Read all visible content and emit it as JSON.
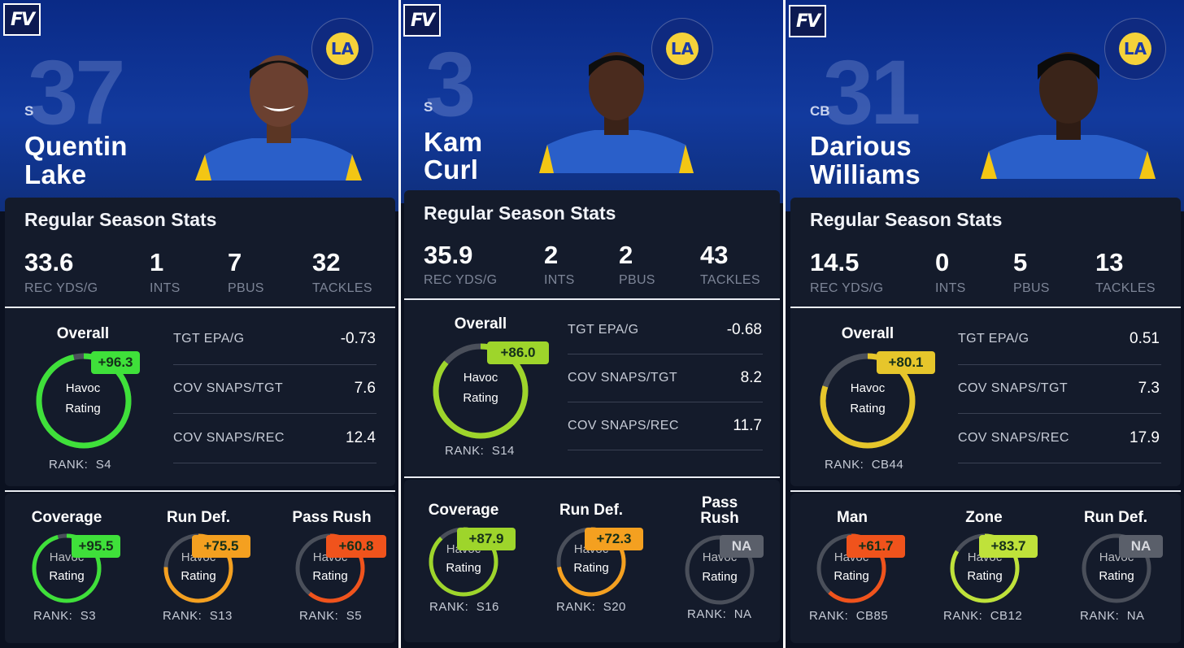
{
  "brand": {
    "logo_text": "FV"
  },
  "colors": {
    "green": "#3fe03a",
    "yellow_green": "#9ed52b",
    "lime": "#bfe23a",
    "yellow": "#e6c62b",
    "orange": "#f4a020",
    "red_orange": "#f0531c",
    "na_gray": "#5a5f6a",
    "hero_blue": "#0f2f7d"
  },
  "labels": {
    "section_title": "Regular Season Stats",
    "overall": "Overall",
    "havoc": "Havoc",
    "rating": "Rating",
    "rank_prefix": "RANK:",
    "rec_yds": "REC YDS/G",
    "ints": "INTS",
    "pbus": "PBUS",
    "tackles": "TACKLES",
    "tgt_epa": "TGT EPA/G",
    "cov_snaps_tgt": "COV SNAPS/TGT",
    "cov_snaps_rec": "COV SNAPS/REC"
  },
  "players": [
    {
      "number": "37",
      "position": "S",
      "first_name": "Quentin",
      "last_name": "Lake",
      "stats": {
        "rec_yds": "33.6",
        "ints": "1",
        "pbus": "7",
        "tackles": "32"
      },
      "overall": {
        "score": "+96.3",
        "value": 96.3,
        "rank": "S4",
        "color": "#3fe03a"
      },
      "metrics": {
        "tgt_epa": "-0.73",
        "cov_snaps_tgt": "7.6",
        "cov_snaps_rec": "12.4"
      },
      "subs": [
        {
          "title": "Coverage",
          "score": "+95.5",
          "value": 95.5,
          "rank": "S3",
          "color": "#3fe03a"
        },
        {
          "title": "Run Def.",
          "score": "+75.5",
          "value": 75.5,
          "rank": "S13",
          "color": "#f4a020"
        },
        {
          "title": "Pass Rush",
          "score": "+60.8",
          "value": 60.8,
          "rank": "S5",
          "color": "#f0531c"
        }
      ]
    },
    {
      "number": "3",
      "position": "S",
      "first_name": "Kam",
      "last_name": "Curl",
      "stats": {
        "rec_yds": "35.9",
        "ints": "2",
        "pbus": "2",
        "tackles": "43"
      },
      "overall": {
        "score": "+86.0",
        "value": 86.0,
        "rank": "S14",
        "color": "#9ed52b"
      },
      "metrics": {
        "tgt_epa": "-0.68",
        "cov_snaps_tgt": "8.2",
        "cov_snaps_rec": "11.7"
      },
      "subs": [
        {
          "title": "Coverage",
          "score": "+87.9",
          "value": 87.9,
          "rank": "S16",
          "color": "#9ed52b"
        },
        {
          "title": "Run Def.",
          "score": "+72.3",
          "value": 72.3,
          "rank": "S20",
          "color": "#f4a020"
        },
        {
          "title_line1": "Pass",
          "title_line2": "Rush",
          "score": "NA",
          "value": 0,
          "rank": "NA",
          "color": "#5a5f6a"
        }
      ]
    },
    {
      "number": "31",
      "position": "CB",
      "first_name": "Darious",
      "last_name": "Williams",
      "stats": {
        "rec_yds": "14.5",
        "ints": "0",
        "pbus": "5",
        "tackles": "13"
      },
      "overall": {
        "score": "+80.1",
        "value": 80.1,
        "rank": "CB44",
        "color": "#e6c62b"
      },
      "metrics": {
        "tgt_epa": "0.51",
        "cov_snaps_tgt": "7.3",
        "cov_snaps_rec": "17.9"
      },
      "subs": [
        {
          "title": "Man",
          "score": "+61.7",
          "value": 61.7,
          "rank": "CB85",
          "color": "#f0531c"
        },
        {
          "title": "Zone",
          "score": "+83.7",
          "value": 83.7,
          "rank": "CB12",
          "color": "#bfe23a"
        },
        {
          "title": "Run Def.",
          "score": "NA",
          "value": 0,
          "rank": "NA",
          "color": "#5a5f6a"
        }
      ]
    }
  ]
}
